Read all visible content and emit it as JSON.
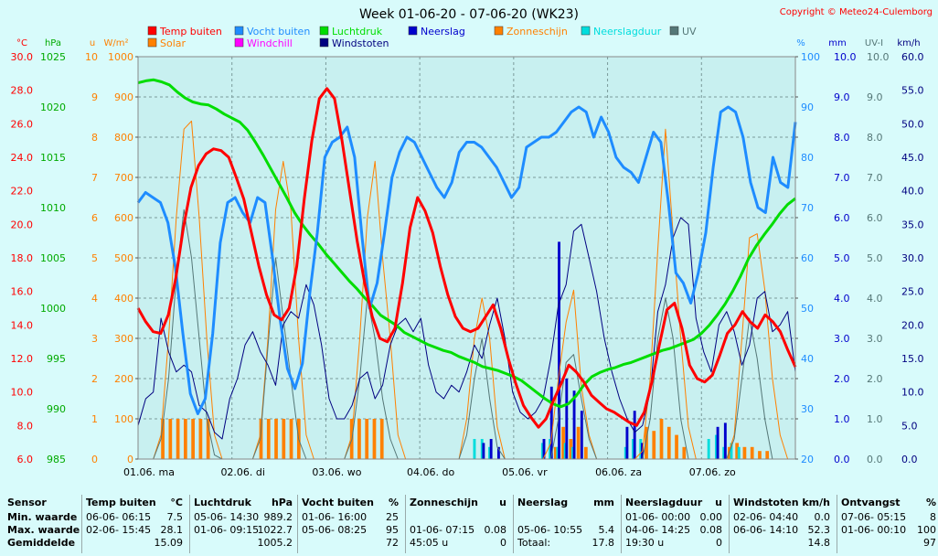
{
  "chart_data": {
    "type": "line",
    "title": "Week 01-06-20 - 07-06-20 (WK23)",
    "copyright": "Copyright © Meteo24-Culemborg",
    "x_day_labels": [
      "01.06.  ma",
      "02.06.  di",
      "03.06.  wo",
      "04.06.  do",
      "05.06.  vr",
      "06.06.  za",
      "07.06.  zo"
    ],
    "axes": [
      {
        "unit": "°C",
        "ticks": [
          "30.0",
          "28.0",
          "26.0",
          "24.0",
          "22.0",
          "20.0",
          "18.0",
          "16.0",
          "14.0",
          "12.0",
          "10.0",
          "8.0",
          "6.0"
        ],
        "range": [
          6,
          30
        ],
        "color": "#ff0000"
      },
      {
        "unit": "hPa",
        "ticks": [
          "1025",
          "1020",
          "1015",
          "1010",
          "1005",
          "1000",
          "995",
          "990",
          "985"
        ],
        "range": [
          985,
          1025
        ],
        "color": "#00aa00"
      },
      {
        "unit": "u",
        "ticks": [
          "10",
          "9",
          "8",
          "7",
          "6",
          "5",
          "4",
          "3",
          "2",
          "1",
          "0"
        ],
        "range": [
          0,
          10
        ],
        "color": "#ff8000"
      },
      {
        "unit": "W/m²",
        "ticks": [
          "1000",
          "900",
          "800",
          "700",
          "600",
          "500",
          "400",
          "300",
          "200",
          "100",
          "0"
        ],
        "range": [
          0,
          1000
        ],
        "color": "#ff8000"
      },
      {
        "unit": "%",
        "ticks": [
          "100",
          "90",
          "80",
          "70",
          "60",
          "50",
          "40",
          "30",
          "20"
        ],
        "range": [
          20,
          100
        ],
        "color": "#1e8cff"
      },
      {
        "unit": "mm",
        "ticks": [
          "10.0",
          "9.0",
          "8.0",
          "7.0",
          "6.0",
          "5.0",
          "4.0",
          "3.0",
          "2.0",
          "1.0",
          "0.0"
        ],
        "range": [
          0,
          10
        ],
        "color": "#0000cc"
      },
      {
        "unit": "UV-I",
        "ticks": [
          "10.0",
          "9.0",
          "8.0",
          "7.0",
          "6.0",
          "5.0",
          "4.0",
          "3.0",
          "2.0",
          "1.0",
          "0.0"
        ],
        "range": [
          0,
          10
        ],
        "color": "#557777"
      },
      {
        "unit": "km/h",
        "ticks": [
          "60.0",
          "55.0",
          "50.0",
          "45.0",
          "40.0",
          "35.0",
          "30.0",
          "25.0",
          "20.0",
          "15.0",
          "10.0",
          "5.0",
          "0.0"
        ],
        "range": [
          0,
          60
        ],
        "color": "#000080"
      }
    ],
    "legend": [
      {
        "name": "Temp buiten",
        "color": "#ff0000"
      },
      {
        "name": "Vocht buiten",
        "color": "#1e8cff"
      },
      {
        "name": "Luchtdruk",
        "color": "#00dd00"
      },
      {
        "name": "Neerslag",
        "color": "#0000cc"
      },
      {
        "name": "Zonneschijn",
        "color": "#ff8000"
      },
      {
        "name": "Neerslagduur",
        "color": "#00dddd"
      },
      {
        "name": "UV",
        "color": "#557777"
      },
      {
        "name": "Solar",
        "color": "#ff8000"
      },
      {
        "name": "Windchill",
        "color": "#ff00ff"
      },
      {
        "name": "Windstoten",
        "color": "#000080"
      }
    ],
    "series": [
      {
        "name": "Temp buiten",
        "unit": "°C",
        "values": [
          15.0,
          14.2,
          13.6,
          13.5,
          14.6,
          16.8,
          19.8,
          22.2,
          23.5,
          24.2,
          24.5,
          24.4,
          24.0,
          22.8,
          21.5,
          19.5,
          17.5,
          15.8,
          14.6,
          14.3,
          15.0,
          17.5,
          21.5,
          25.0,
          27.5,
          28.1,
          27.5,
          25.0,
          22.0,
          19.0,
          16.5,
          14.5,
          13.2,
          13.0,
          13.8,
          16.5,
          19.8,
          21.6,
          20.8,
          19.5,
          17.5,
          15.8,
          14.5,
          13.8,
          13.6,
          13.8,
          14.5,
          15.2,
          13.8,
          12.0,
          10.5,
          9.2,
          8.5,
          7.9,
          8.4,
          9.5,
          10.5,
          11.6,
          11.2,
          10.6,
          9.8,
          9.4,
          9.0,
          8.8,
          8.5,
          8.2,
          8.0,
          8.8,
          10.6,
          12.8,
          14.9,
          15.3,
          13.8,
          11.6,
          10.8,
          10.6,
          11.0,
          12.2,
          13.5,
          14.0,
          14.8,
          14.2,
          13.8,
          14.6,
          14.2,
          13.6,
          12.5,
          11.5
        ]
      },
      {
        "name": "Vocht buiten",
        "unit": "%",
        "values": [
          71,
          73,
          72,
          71,
          67,
          58,
          45,
          33,
          29,
          32,
          45,
          63,
          71,
          72,
          69,
          67,
          72,
          71,
          60,
          48,
          38,
          34,
          39,
          53,
          65,
          80,
          83,
          84,
          86,
          80,
          64,
          50,
          55,
          65,
          76,
          81,
          84,
          83,
          80,
          77,
          74,
          72,
          75,
          81,
          83,
          83,
          82,
          80,
          78,
          75,
          72,
          74,
          82,
          83,
          84,
          84,
          85,
          87,
          89,
          90,
          89,
          84,
          88,
          85,
          80,
          78,
          77,
          75,
          80,
          85,
          83,
          71,
          57,
          55,
          51,
          57,
          65,
          78,
          89,
          90,
          89,
          84,
          75,
          70,
          69,
          80,
          75,
          74,
          87
        ]
      },
      {
        "name": "Luchtdruk",
        "unit": "hPa",
        "values": [
          1022.4,
          1022.6,
          1022.7,
          1022.5,
          1022.2,
          1021.5,
          1020.9,
          1020.5,
          1020.3,
          1020.2,
          1019.8,
          1019.3,
          1018.9,
          1018.5,
          1017.7,
          1016.5,
          1015.2,
          1013.8,
          1012.4,
          1011.0,
          1009.5,
          1008.3,
          1007.3,
          1006.4,
          1005.4,
          1004.5,
          1003.6,
          1002.7,
          1001.9,
          1001.0,
          1000.2,
          999.3,
          998.8,
          998.3,
          997.6,
          997.2,
          996.8,
          996.4,
          996.1,
          995.8,
          995.6,
          995.2,
          994.9,
          994.6,
          994.2,
          994.0,
          993.8,
          993.5,
          993.2,
          992.8,
          992.2,
          991.6,
          991.0,
          990.5,
          990.2,
          990.5,
          991.3,
          992.4,
          993.2,
          993.6,
          993.9,
          994.1,
          994.4,
          994.6,
          994.9,
          995.2,
          995.5,
          995.8,
          996.0,
          996.3,
          996.6,
          996.9,
          997.5,
          998.3,
          999.3,
          1000.4,
          1001.7,
          1003.2,
          1004.9,
          1006.2,
          1007.3,
          1008.3,
          1009.4,
          1010.3,
          1010.9
        ]
      },
      {
        "name": "Solar",
        "unit": "W/m²",
        "values": [
          0,
          0,
          0,
          60,
          300,
          600,
          820,
          840,
          600,
          300,
          60,
          0,
          0,
          0,
          0,
          0,
          60,
          300,
          620,
          740,
          620,
          300,
          60,
          0,
          0,
          0,
          0,
          0,
          60,
          300,
          600,
          740,
          500,
          300,
          60,
          0,
          0,
          0,
          0,
          0,
          0,
          0,
          0,
          100,
          300,
          400,
          300,
          80,
          0,
          0,
          0,
          0,
          0,
          0,
          40,
          200,
          340,
          420,
          180,
          60,
          0,
          0,
          0,
          0,
          0,
          0,
          20,
          200,
          520,
          820,
          560,
          300,
          80,
          0,
          0,
          0,
          0,
          0,
          60,
          300,
          550,
          560,
          420,
          200,
          60,
          0,
          0
        ]
      },
      {
        "name": "Windstoten",
        "unit": "km/h",
        "values": [
          5,
          9,
          10,
          21,
          16,
          13,
          14,
          13,
          8,
          7,
          4,
          3,
          9,
          12,
          17,
          19,
          16,
          14,
          11,
          20,
          22,
          21,
          26,
          23,
          17,
          9,
          6,
          6,
          8,
          12,
          13,
          9,
          11,
          17,
          20,
          21,
          19,
          21,
          14,
          10,
          9,
          11,
          10,
          13,
          17,
          15,
          20,
          24,
          18,
          10,
          7,
          6,
          7,
          9,
          15,
          23,
          26,
          34,
          35,
          30,
          25,
          18,
          13,
          9,
          6,
          4,
          5,
          10,
          22,
          26,
          33,
          36,
          35,
          21,
          16,
          13,
          20,
          22,
          19,
          14,
          17,
          24,
          25,
          19,
          20,
          22,
          13
        ]
      },
      {
        "name": "UV",
        "unit": "UV-I",
        "values": [
          0,
          0,
          0,
          0.5,
          2,
          4.5,
          6.2,
          5,
          3,
          1,
          0.1,
          0,
          0,
          0,
          0,
          0,
          0.5,
          2.8,
          5,
          3.5,
          2,
          0.5,
          0,
          0,
          0,
          0,
          0,
          0,
          0.5,
          2,
          4,
          3,
          1.5,
          0.5,
          0,
          0,
          0,
          0,
          0,
          0,
          0,
          0,
          0,
          0.6,
          2,
          3,
          1.5,
          0.3,
          0,
          0,
          0,
          0,
          0,
          0,
          0,
          1,
          2.4,
          2.6,
          1.5,
          0.5,
          0,
          0,
          0,
          0,
          0,
          0,
          0,
          1,
          3,
          4,
          3,
          1,
          0,
          0,
          0,
          0,
          0,
          0,
          0.5,
          2,
          3.5,
          2.5,
          1,
          0,
          0,
          0,
          0
        ]
      },
      {
        "name": "Zonneschijn",
        "unit": "u",
        "values": [
          0,
          0,
          0,
          1,
          1,
          1,
          1,
          1,
          1,
          1,
          0,
          0,
          0,
          0,
          0,
          0,
          1,
          1,
          1,
          1,
          1,
          1,
          0,
          0,
          0,
          0,
          0,
          0,
          1,
          1,
          1,
          1,
          1,
          0,
          0,
          0,
          0,
          0,
          0,
          0,
          0,
          0,
          0,
          0,
          0,
          0,
          0,
          0,
          0,
          0,
          0,
          0,
          0,
          0,
          0,
          0.3,
          0.8,
          0.5,
          0.8,
          0.3,
          0,
          0,
          0,
          0,
          0,
          0,
          0,
          0.8,
          0.7,
          1,
          0.8,
          0.6,
          0.3,
          0,
          0,
          0,
          0,
          0,
          0.3,
          0.4,
          0.3,
          0.3,
          0.2,
          0.2,
          0,
          0,
          0
        ]
      },
      {
        "name": "Neerslag",
        "unit": "mm",
        "values": [
          0,
          0,
          0,
          0,
          0,
          0,
          0,
          0,
          0,
          0,
          0,
          0,
          0,
          0,
          0,
          0,
          0,
          0,
          0,
          0,
          0,
          0,
          0,
          0,
          0,
          0,
          0,
          0,
          0,
          0,
          0,
          0,
          0,
          0,
          0,
          0,
          0,
          0,
          0,
          0,
          0,
          0,
          0,
          0,
          0,
          0.4,
          0.5,
          0.3,
          0,
          0,
          0,
          0,
          0,
          0.5,
          1.8,
          5.4,
          2,
          1.7,
          1.2,
          0,
          0,
          0,
          0,
          0,
          0.8,
          1.2,
          0.4,
          0,
          0,
          0,
          0,
          0,
          0,
          0,
          0,
          0,
          0.8,
          0.9,
          0,
          0,
          0,
          0,
          0,
          0,
          0,
          0,
          0
        ]
      },
      {
        "name": "Neerslagduur",
        "unit": "u",
        "values": [
          0,
          0,
          0,
          0,
          0,
          0,
          0,
          0,
          0,
          0,
          0,
          0,
          0,
          0,
          0,
          0,
          0,
          0,
          0,
          0,
          0,
          0,
          0,
          0,
          0,
          0,
          0,
          0,
          0,
          0,
          0,
          0,
          0,
          0,
          0,
          0,
          0,
          0,
          0,
          0,
          0,
          0,
          0,
          0,
          0.5,
          0.5,
          0.3,
          0,
          0,
          0,
          0,
          0,
          0,
          0.4,
          0.5,
          0.3,
          0.4,
          0.3,
          0,
          0,
          0,
          0,
          0,
          0,
          0.3,
          0.5,
          0.5,
          0,
          0,
          0,
          0,
          0,
          0,
          0,
          0,
          0.5,
          0.6,
          0.3,
          0.4,
          0.3,
          0,
          0,
          0,
          0,
          0,
          0,
          0
        ]
      }
    ]
  },
  "summary_table": {
    "headers": [
      {
        "label": "Sensor",
        "unit": ""
      },
      {
        "label": "Temp buiten",
        "unit": "°C"
      },
      {
        "label": "Luchtdruk",
        "unit": "hPa"
      },
      {
        "label": "Vocht buiten",
        "unit": "%"
      },
      {
        "label": "Zonneschijn",
        "unit": "u"
      },
      {
        "label": "Neerslag",
        "unit": "mm"
      },
      {
        "label": "Neerslagduur",
        "unit": "u"
      },
      {
        "label": "Windstoten",
        "unit": "km/h"
      },
      {
        "label": "Ontvangst",
        "unit": "%"
      }
    ],
    "row_labels": [
      "Min. waarde",
      "Max. waarde",
      "Gemiddelde"
    ],
    "temp": {
      "min_time": "06-06- 06:15",
      "min": "7.5",
      "max_time": "02-06- 15:45",
      "max": "28.1",
      "avg": "15.09"
    },
    "pressure": {
      "min_time": "05-06- 14:30",
      "min": "989.2",
      "max_time": "01-06- 09:15",
      "max": "1022.7",
      "avg": "1005.2"
    },
    "humidity": {
      "min_time": "01-06- 16:00",
      "min": "25",
      "max_time": "05-06- 08:25",
      "max": "95",
      "avg": "72"
    },
    "sunshine": {
      "max_time": "01-06- 07:15",
      "max": "0.08",
      "total_time": "45:05 u",
      "total": "0"
    },
    "rain": {
      "max_time": "05-06- 10:55",
      "max": "5.4",
      "total_label": "Totaal:",
      "total": "17.8"
    },
    "rainduration": {
      "min_time": "01-06- 00:00",
      "min": "0.00",
      "max_time": "04-06- 14:25",
      "max": "0.08",
      "total_time": "19:30 u",
      "total": "0"
    },
    "gusts": {
      "min_time": "02-06- 04:40",
      "min": "0.0",
      "max_time": "06-06- 14:10",
      "max": "52.3",
      "avg": "14.8"
    },
    "reception": {
      "min_time": "07-06- 05:15",
      "min": "8",
      "max_time": "01-06- 00:10",
      "max": "100",
      "avg": "97"
    }
  }
}
